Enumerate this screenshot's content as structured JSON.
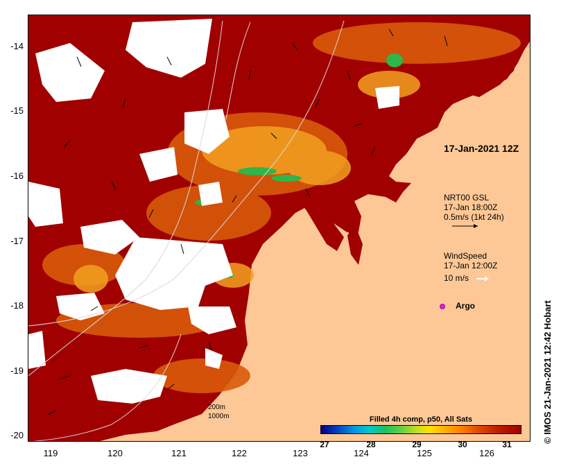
{
  "map": {
    "y_axis": [
      "-14",
      "-15",
      "-16",
      "-17",
      "-18",
      "-19",
      "-20"
    ],
    "x_axis": [
      "119",
      "120",
      "121",
      "122",
      "123",
      "124",
      "125",
      "126"
    ],
    "date_label": "17-Jan-2021 12Z",
    "gsl": {
      "line1": "NRT00 GSL",
      "line2": "17-Jan 18:00Z",
      "line3": "0.5m/s (1kt 24h)"
    },
    "wind": {
      "line1": "WindSpeed",
      "line2": "17-Jan 12:00Z",
      "line3": "10 m/s"
    },
    "argo_label": "Argo",
    "scale": {
      "depth1": "200m",
      "depth2": "1000m"
    },
    "colorbar": {
      "title": "Filled 4h comp, p50, All Sats",
      "ticks": [
        "27",
        "28",
        "29",
        "30",
        "31"
      ]
    },
    "credit": "© IMOS 21-Jan-2021 12:42 Hobart",
    "colors": {
      "land": "#fdc896",
      "sst_hot": "#a00000",
      "sst_warm": "#d85a0a",
      "sst_mild": "#f2a020",
      "sst_cool": "#2fb548",
      "cloud": "#ffffff",
      "argo": "#e020e0"
    }
  }
}
